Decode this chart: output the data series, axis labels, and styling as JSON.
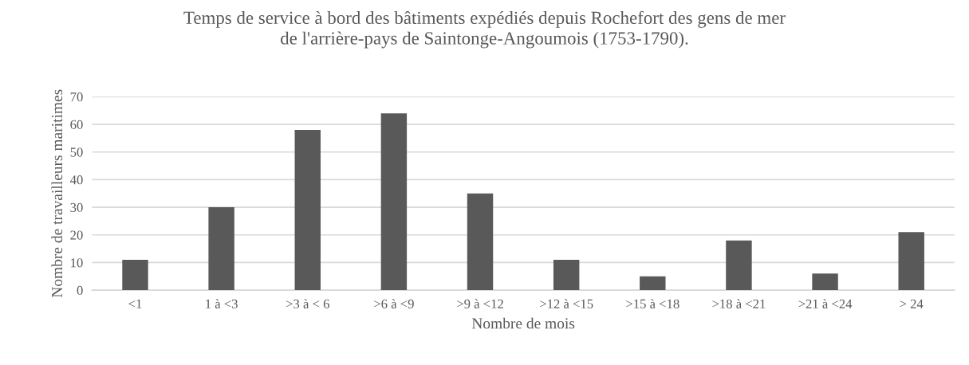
{
  "chart_data": {
    "type": "bar",
    "title": "Temps de service à bord des bâtiments expédiés depuis Rochefort des gens de mer\nde l'arrière-pays de Saintonge-Angoumois (1753-1790).",
    "xlabel": "Nombre de mois",
    "ylabel": "Nombre de travailleurs maritimes",
    "categories": [
      "<1",
      "1 à <3",
      ">3 à < 6",
      ">6 à <9",
      ">9 à <12",
      ">12 à <15",
      ">15 à <18",
      ">18 à <21",
      ">21 à <24",
      "> 24"
    ],
    "values": [
      11,
      30,
      58,
      64,
      35,
      11,
      5,
      18,
      6,
      21
    ],
    "color": "#595959",
    "ylim": [
      0,
      70
    ],
    "yticks": [
      0,
      10,
      20,
      30,
      40,
      50,
      60,
      70
    ],
    "grid": "y",
    "legend": false
  }
}
